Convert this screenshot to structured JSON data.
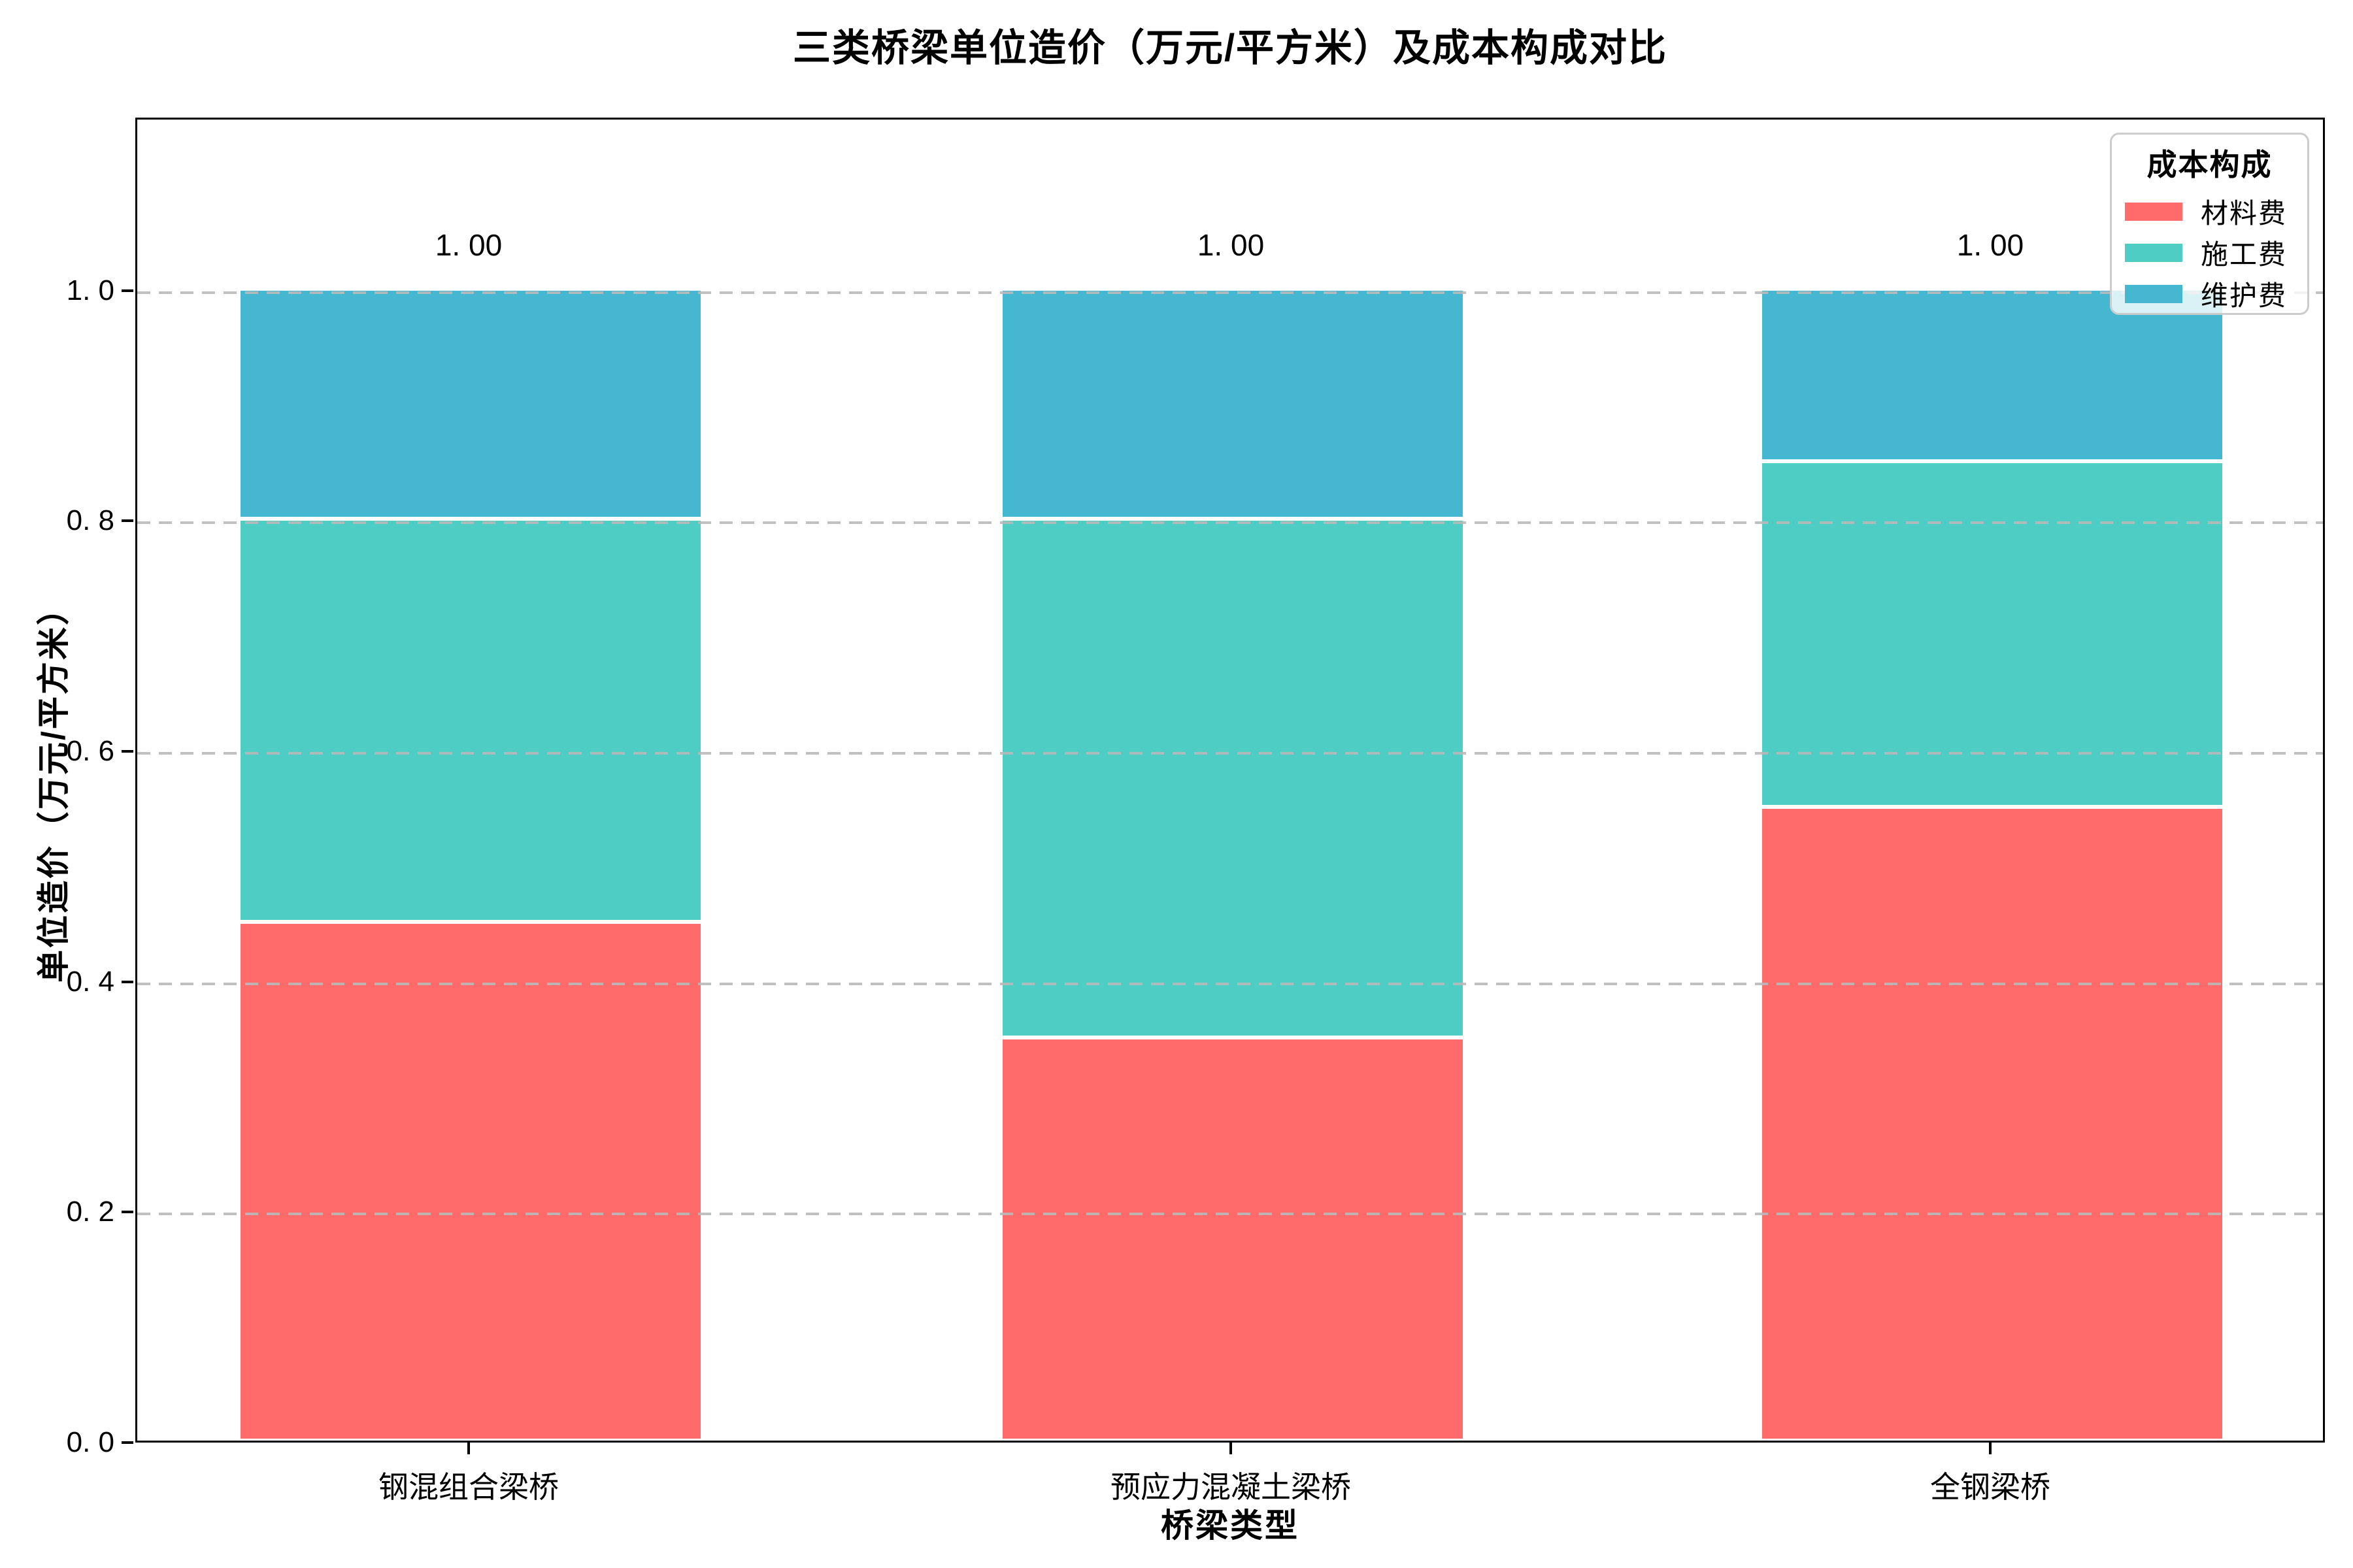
{
  "title": "三类桥梁单位造价（万元/平方米）及成本构成对比",
  "axes": {
    "x_label": "桥梁类型",
    "y_label": "单位造价（万元/平方米）",
    "y_ticks": [
      {
        "label": "0. 0",
        "value": 0.0
      },
      {
        "label": "0. 2",
        "value": 0.2
      },
      {
        "label": "0. 4",
        "value": 0.4
      },
      {
        "label": "0. 6",
        "value": 0.6
      },
      {
        "label": "0. 8",
        "value": 0.8
      },
      {
        "label": "1. 0",
        "value": 1.0
      }
    ]
  },
  "legend": {
    "title": "成本构成",
    "entries": [
      {
        "label": "材料费",
        "color": "#FF6B6B"
      },
      {
        "label": "施工费",
        "color": "#4ECDC4"
      },
      {
        "label": "维护费",
        "color": "#45B7D1"
      }
    ]
  },
  "bar_total_labels": [
    "1. 00",
    "1. 00",
    "1. 00"
  ],
  "chart_data": {
    "type": "bar",
    "stacked": true,
    "title": "三类桥梁单位造价（万元/平方米）及成本构成对比",
    "xlabel": "桥梁类型",
    "ylabel": "单位造价（万元/平方米）",
    "categories": [
      "钢混组合梁桥",
      "预应力混凝土梁桥",
      "全钢梁桥"
    ],
    "series": [
      {
        "name": "材料费",
        "color": "#FF6B6B",
        "values": [
          0.45,
          0.35,
          0.55
        ]
      },
      {
        "name": "施工费",
        "color": "#4ECDC4",
        "values": [
          0.35,
          0.45,
          0.3
        ]
      },
      {
        "name": "维护费",
        "color": "#45B7D1",
        "values": [
          0.2,
          0.2,
          0.15
        ]
      }
    ],
    "totals": [
      1.0,
      1.0,
      1.0
    ],
    "ylim": [
      0,
      1.15
    ],
    "grid": "horizontal-dashed",
    "legend_position": "upper right",
    "legend_title": "成本构成",
    "bar_edge_color": "#ffffff"
  }
}
